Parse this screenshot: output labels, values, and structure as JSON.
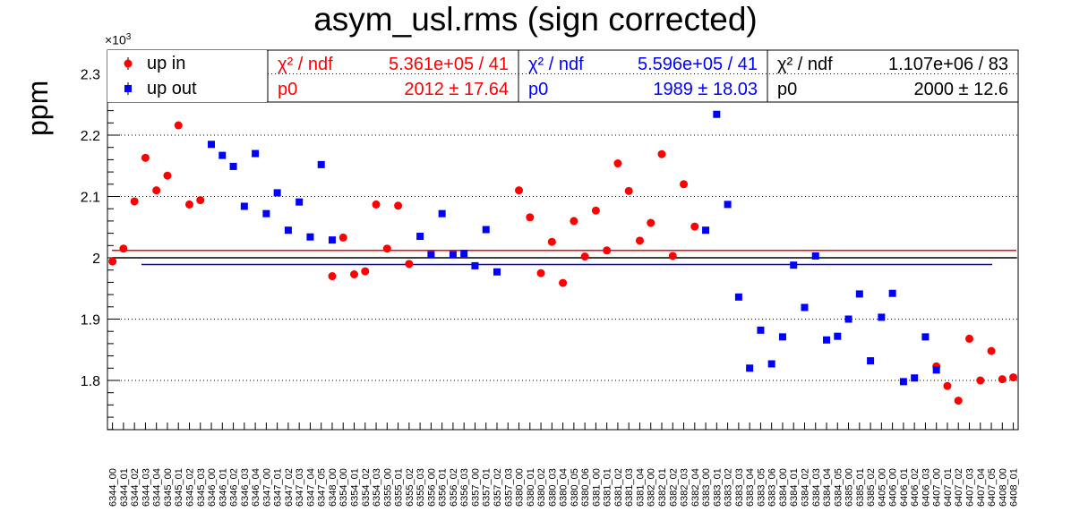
{
  "chart_data": {
    "type": "scatter",
    "title": "asym_usl.rms (sign corrected)",
    "ylabel": "ppm",
    "y_multiplier": "×10",
    "y_multiplier_exp": "3",
    "ylim": [
      1.72,
      2.25
    ],
    "yticks": [
      "1.8",
      "1.9",
      "2",
      "2.1",
      "2.2",
      "2.3"
    ],
    "grid": "horizontal dotted",
    "legend_position": "top-left",
    "categories": [
      "6344_00",
      "6344_01",
      "6344_02",
      "6344_03",
      "6344_04",
      "6345_00",
      "6345_01",
      "6345_02",
      "6345_03",
      "6346_00",
      "6346_01",
      "6346_02",
      "6346_03",
      "6346_04",
      "6347_00",
      "6347_01",
      "6347_02",
      "6347_03",
      "6347_04",
      "6347_05",
      "6348_00",
      "6354_00",
      "6354_01",
      "6354_02",
      "6354_03",
      "6355_00",
      "6355_01",
      "6355_02",
      "6355_03",
      "6356_00",
      "6356_01",
      "6356_02",
      "6356_03",
      "6357_00",
      "6357_01",
      "6357_02",
      "6357_03",
      "6380_00",
      "6380_01",
      "6380_02",
      "6380_03",
      "6380_04",
      "6380_05",
      "6380_06",
      "6381_00",
      "6381_01",
      "6381_02",
      "6381_03",
      "6381_04",
      "6382_00",
      "6382_01",
      "6382_02",
      "6382_03",
      "6382_04",
      "6383_00",
      "6383_01",
      "6383_02",
      "6383_03",
      "6383_04",
      "6383_05",
      "6383_06",
      "6384_00",
      "6384_01",
      "6384_02",
      "6384_03",
      "6384_04",
      "6384_05",
      "6385_00",
      "6385_01",
      "6385_02",
      "6405_00",
      "6406_00",
      "6406_01",
      "6406_02",
      "6406_03",
      "6407_00",
      "6407_01",
      "6407_02",
      "6407_03",
      "6407_04",
      "6407_05",
      "6408_00",
      "6408_01"
    ],
    "series": [
      {
        "name": "up in",
        "color": "#ff0000",
        "marker": "circle",
        "points": [
          [
            0,
            1.994
          ],
          [
            1,
            2.015
          ],
          [
            2,
            2.092
          ],
          [
            3,
            2.163
          ],
          [
            4,
            2.11
          ],
          [
            5,
            2.134
          ],
          [
            6,
            2.216
          ],
          [
            7,
            2.087
          ],
          [
            8,
            2.094
          ],
          [
            20,
            1.97
          ],
          [
            21,
            2.033
          ],
          [
            22,
            1.973
          ],
          [
            23,
            1.978
          ],
          [
            24,
            2.087
          ],
          [
            25,
            2.015
          ],
          [
            26,
            2.085
          ],
          [
            27,
            1.99
          ],
          [
            37,
            2.11
          ],
          [
            38,
            2.066
          ],
          [
            39,
            1.975
          ],
          [
            40,
            2.026
          ],
          [
            41,
            1.959
          ],
          [
            42,
            2.06
          ],
          [
            43,
            2.002
          ],
          [
            44,
            2.077
          ],
          [
            45,
            2.012
          ],
          [
            46,
            2.154
          ],
          [
            47,
            2.109
          ],
          [
            48,
            2.028
          ],
          [
            49,
            2.057
          ],
          [
            50,
            2.169
          ],
          [
            51,
            2.003
          ],
          [
            52,
            2.12
          ],
          [
            53,
            2.051
          ],
          [
            75,
            1.823
          ],
          [
            76,
            1.791
          ],
          [
            77,
            1.767
          ],
          [
            78,
            1.868
          ],
          [
            79,
            1.8
          ],
          [
            80,
            1.848
          ],
          [
            81,
            1.802
          ],
          [
            82,
            1.805
          ]
        ]
      },
      {
        "name": "up out",
        "color": "#0000ff",
        "marker": "square",
        "points": [
          [
            9,
            2.185
          ],
          [
            10,
            2.167
          ],
          [
            11,
            2.149
          ],
          [
            12,
            2.084
          ],
          [
            13,
            2.17
          ],
          [
            14,
            2.072
          ],
          [
            15,
            2.106
          ],
          [
            16,
            2.045
          ],
          [
            17,
            2.091
          ],
          [
            18,
            2.034
          ],
          [
            19,
            2.152
          ],
          [
            20,
            2.029
          ],
          [
            28,
            2.035
          ],
          [
            29,
            2.005
          ],
          [
            30,
            2.072
          ],
          [
            31,
            2.005
          ],
          [
            32,
            2.007
          ],
          [
            33,
            1.987
          ],
          [
            34,
            2.046
          ],
          [
            35,
            1.977
          ],
          [
            54,
            2.045
          ],
          [
            55,
            2.234
          ],
          [
            56,
            2.087
          ],
          [
            57,
            1.936
          ],
          [
            58,
            1.82
          ],
          [
            59,
            1.882
          ],
          [
            60,
            1.827
          ],
          [
            61,
            1.871
          ],
          [
            62,
            1.988
          ],
          [
            63,
            1.919
          ],
          [
            64,
            2.003
          ],
          [
            65,
            1.866
          ],
          [
            66,
            1.872
          ],
          [
            67,
            1.9
          ],
          [
            68,
            1.941
          ],
          [
            69,
            1.832
          ],
          [
            70,
            1.903
          ],
          [
            71,
            1.942
          ],
          [
            72,
            1.798
          ],
          [
            73,
            1.804
          ],
          [
            74,
            1.871
          ],
          [
            75,
            1.817
          ]
        ]
      }
    ],
    "fit_lines": [
      {
        "color": "#ff0000",
        "value": 2.012
      },
      {
        "color": "#0000ff",
        "value": 1.989
      },
      {
        "color": "#000000",
        "value": 2.0
      }
    ],
    "legend": {
      "items": [
        {
          "label": "up in",
          "color": "#ff0000"
        },
        {
          "label": "up out",
          "color": "#0000ff"
        }
      ]
    },
    "fit_stats": [
      {
        "color": "#ff0000",
        "chi2_label": "χ² / ndf",
        "chi2_value": "5.361e+05 / 41",
        "p0_label": "p0",
        "p0_value": "2012 ± 17.64"
      },
      {
        "color": "#0000ff",
        "chi2_label": "χ² / ndf",
        "chi2_value": "5.596e+05 / 41",
        "p0_label": "p0",
        "p0_value": "1989 ± 18.03"
      },
      {
        "color": "#000000",
        "chi2_label": "χ² / ndf",
        "chi2_value": "1.107e+06 / 83",
        "p0_label": "p0",
        "p0_value": "2000 ±  12.6"
      }
    ]
  }
}
